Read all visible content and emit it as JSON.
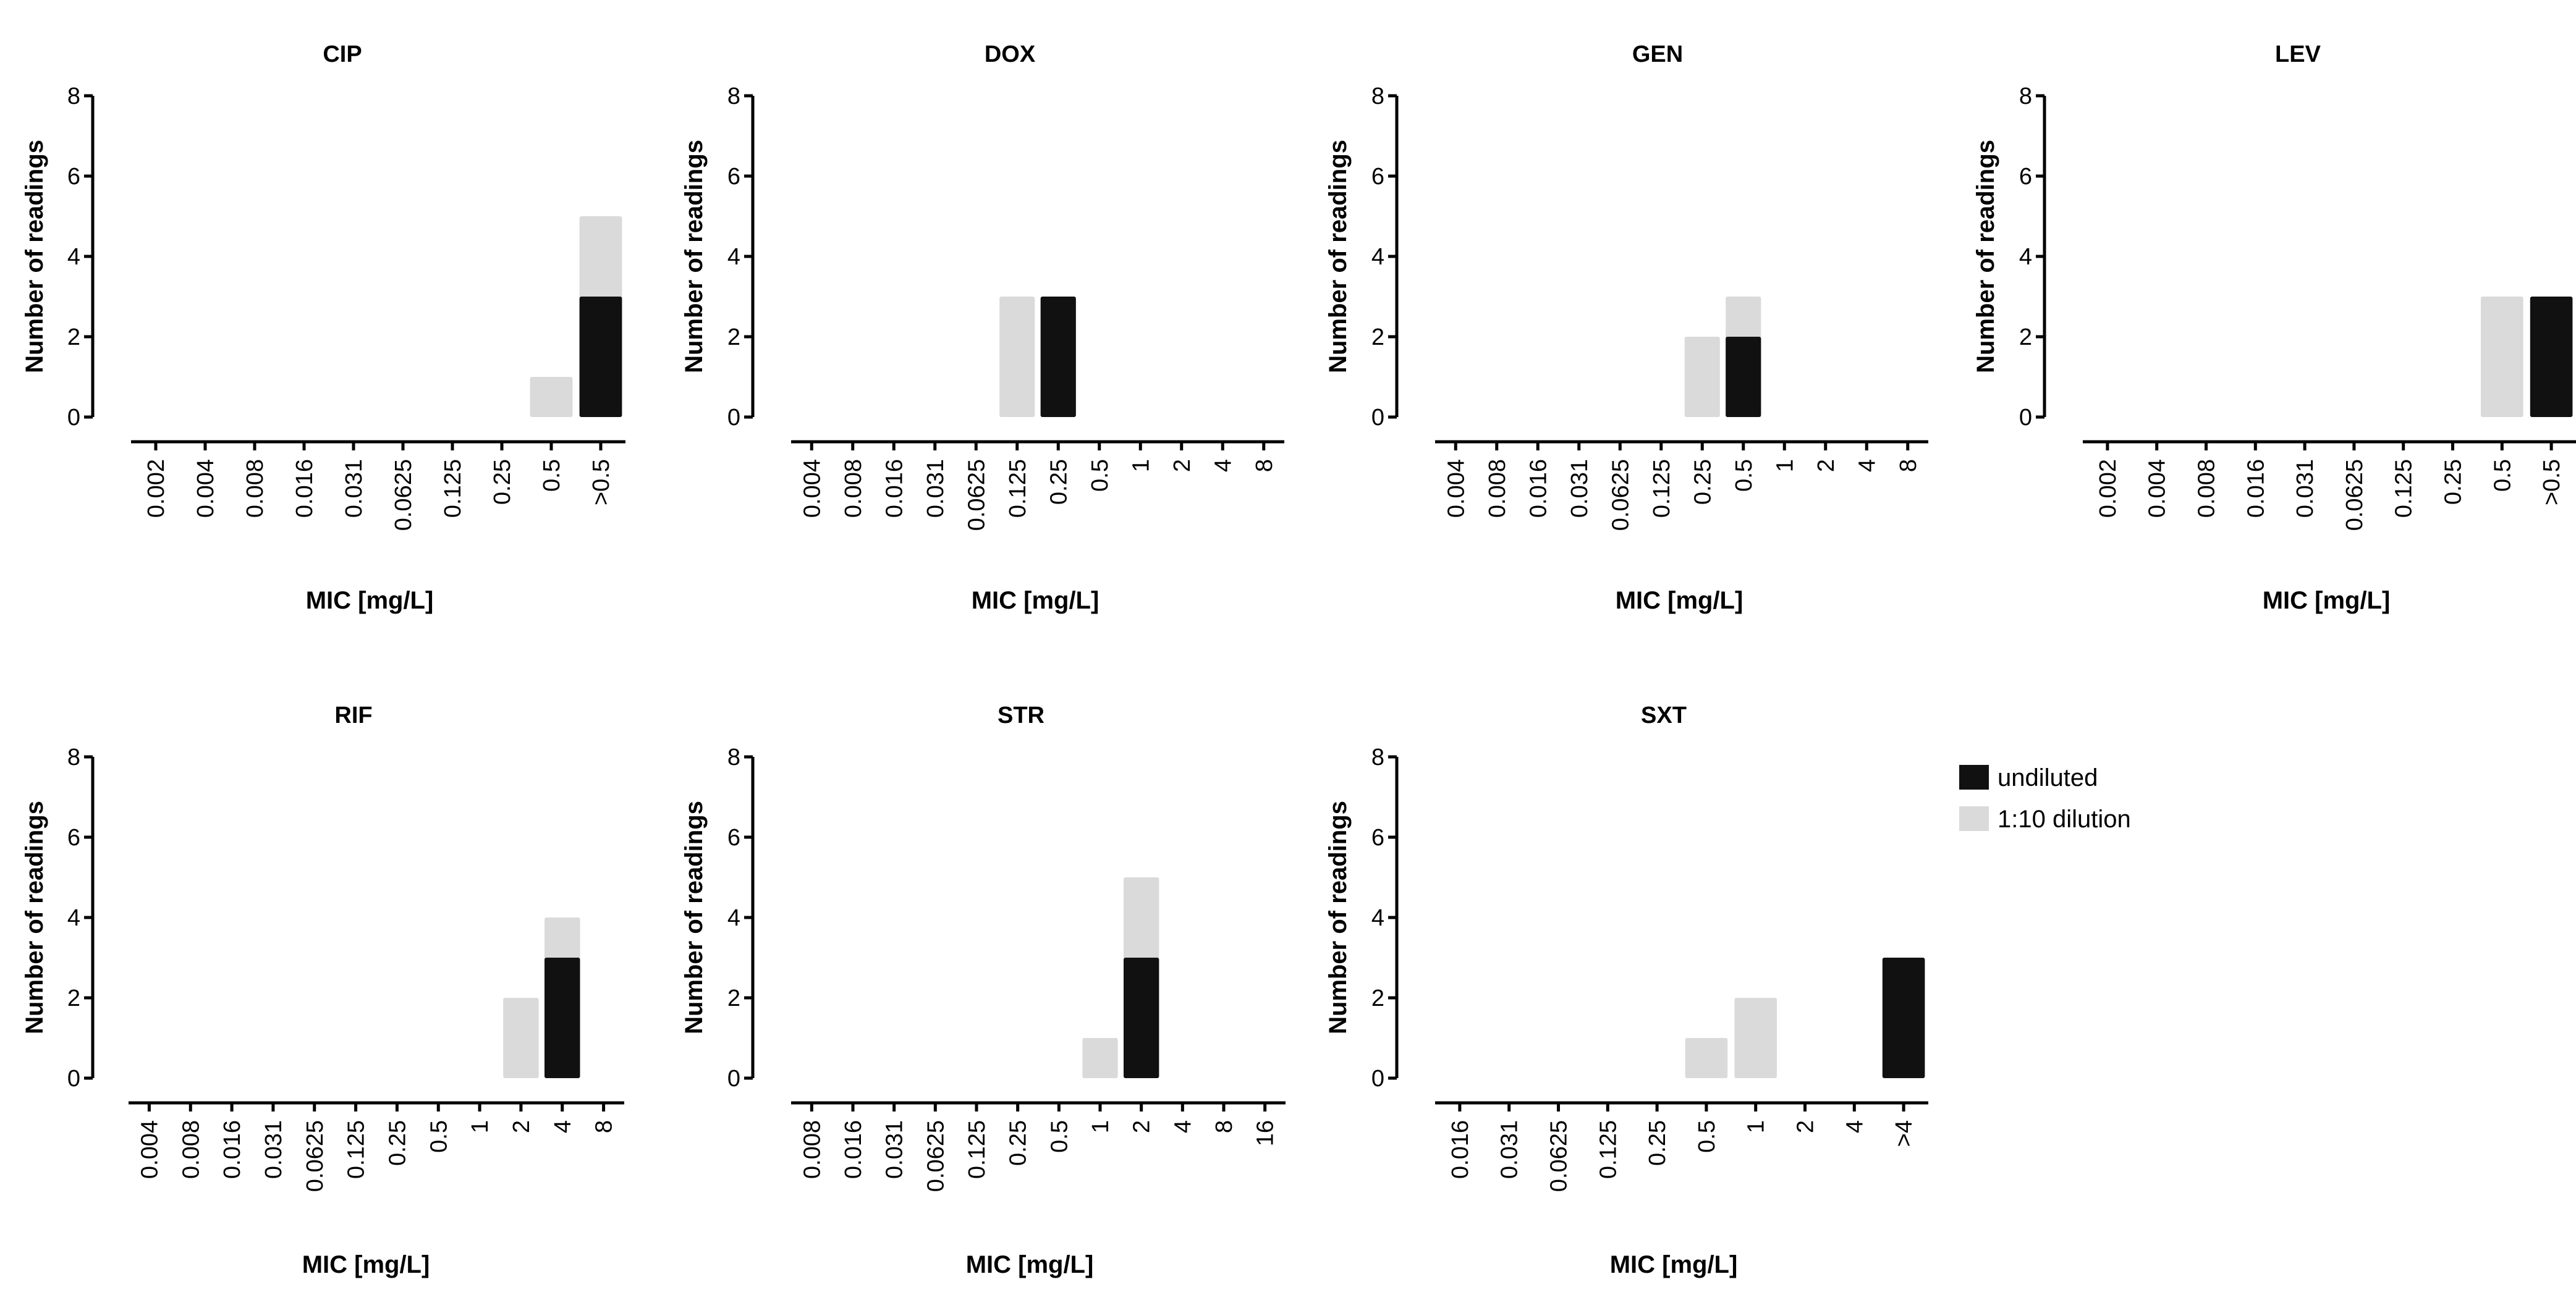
{
  "figure": {
    "colors": {
      "undiluted": "#111111",
      "dilution": "#dadada"
    }
  },
  "legend": {
    "items": [
      {
        "key": "undiluted",
        "label": "undiluted",
        "color": "#111111"
      },
      {
        "key": "dilution",
        "label": "1:10 dilution",
        "color": "#dadada"
      }
    ]
  },
  "chart_data": [
    {
      "type": "bar",
      "title": "CIP",
      "xlabel": "MIC [mg/L]",
      "ylabel": "Number of readings",
      "ylim": [
        0,
        8
      ],
      "yticks": [
        0,
        2,
        4,
        6,
        8
      ],
      "categories": [
        "0.002",
        "0.004",
        "0.008",
        "0.016",
        "0.031",
        "0.0625",
        "0.125",
        "0.25",
        "0.5",
        ">0.5"
      ],
      "series": [
        {
          "name": "1:10 dilution",
          "values": [
            0,
            0,
            0,
            0,
            0,
            0,
            0,
            0,
            1,
            5
          ]
        },
        {
          "name": "undiluted",
          "values": [
            0,
            0,
            0,
            0,
            0,
            0,
            0,
            0,
            0,
            3
          ]
        }
      ]
    },
    {
      "type": "bar",
      "title": "DOX",
      "xlabel": "MIC [mg/L]",
      "ylabel": "Number of readings",
      "ylim": [
        0,
        8
      ],
      "yticks": [
        0,
        2,
        4,
        6,
        8
      ],
      "categories": [
        "0.004",
        "0.008",
        "0.016",
        "0.031",
        "0.0625",
        "0.125",
        "0.25",
        "0.5",
        "1",
        "2",
        "4",
        "8"
      ],
      "series": [
        {
          "name": "1:10 dilution",
          "values": [
            0,
            0,
            0,
            0,
            0,
            3,
            0,
            0,
            0,
            0,
            0,
            0
          ]
        },
        {
          "name": "undiluted",
          "values": [
            0,
            0,
            0,
            0,
            0,
            0,
            3,
            0,
            0,
            0,
            0,
            0
          ]
        }
      ]
    },
    {
      "type": "bar",
      "title": "GEN",
      "xlabel": "MIC [mg/L]",
      "ylabel": "Number of readings",
      "ylim": [
        0,
        8
      ],
      "yticks": [
        0,
        2,
        4,
        6,
        8
      ],
      "categories": [
        "0.004",
        "0.008",
        "0.016",
        "0.031",
        "0.0625",
        "0.125",
        "0.25",
        "0.5",
        "1",
        "2",
        "4",
        "8"
      ],
      "series": [
        {
          "name": "1:10 dilution",
          "values": [
            0,
            0,
            0,
            0,
            0,
            0,
            2,
            3,
            0,
            0,
            0,
            0
          ]
        },
        {
          "name": "undiluted",
          "values": [
            0,
            0,
            0,
            0,
            0,
            0,
            0,
            2,
            0,
            0,
            0,
            0
          ]
        }
      ]
    },
    {
      "type": "bar",
      "title": "LEV",
      "xlabel": "MIC [mg/L]",
      "ylabel": "Number of readings",
      "ylim": [
        0,
        8
      ],
      "yticks": [
        0,
        2,
        4,
        6,
        8
      ],
      "categories": [
        "0.002",
        "0.004",
        "0.008",
        "0.016",
        "0.031",
        "0.0625",
        "0.125",
        "0.25",
        "0.5",
        ">0.5"
      ],
      "series": [
        {
          "name": "1:10 dilution",
          "values": [
            0,
            0,
            0,
            0,
            0,
            0,
            0,
            0,
            3,
            0
          ]
        },
        {
          "name": "undiluted",
          "values": [
            0,
            0,
            0,
            0,
            0,
            0,
            0,
            0,
            0,
            3
          ]
        }
      ]
    },
    {
      "type": "bar",
      "title": "RIF",
      "xlabel": "MIC [mg/L]",
      "ylabel": "Number of readings",
      "ylim": [
        0,
        8
      ],
      "yticks": [
        0,
        2,
        4,
        6,
        8
      ],
      "categories": [
        "0.004",
        "0.008",
        "0.016",
        "0.031",
        "0.0625",
        "0.125",
        "0.25",
        "0.5",
        "1",
        "2",
        "4",
        "8"
      ],
      "series": [
        {
          "name": "1:10 dilution",
          "values": [
            0,
            0,
            0,
            0,
            0,
            0,
            0,
            0,
            0,
            2,
            4,
            0
          ]
        },
        {
          "name": "undiluted",
          "values": [
            0,
            0,
            0,
            0,
            0,
            0,
            0,
            0,
            0,
            0,
            3,
            0
          ]
        }
      ]
    },
    {
      "type": "bar",
      "title": "STR",
      "xlabel": "MIC [mg/L]",
      "ylabel": "Number of readings",
      "ylim": [
        0,
        8
      ],
      "yticks": [
        0,
        2,
        4,
        6,
        8
      ],
      "categories": [
        "0.008",
        "0.016",
        "0.031",
        "0.0625",
        "0.125",
        "0.25",
        "0.5",
        "1",
        "2",
        "4",
        "8",
        "16"
      ],
      "series": [
        {
          "name": "1:10 dilution",
          "values": [
            0,
            0,
            0,
            0,
            0,
            0,
            0,
            1,
            5,
            0,
            0,
            0
          ]
        },
        {
          "name": "undiluted",
          "values": [
            0,
            0,
            0,
            0,
            0,
            0,
            0,
            0,
            3,
            0,
            0,
            0
          ]
        }
      ]
    },
    {
      "type": "bar",
      "title": "SXT",
      "xlabel": "MIC [mg/L]",
      "ylabel": "Number of readings",
      "ylim": [
        0,
        8
      ],
      "yticks": [
        0,
        2,
        4,
        6,
        8
      ],
      "categories": [
        "0.016",
        "0.031",
        "0.0625",
        "0.125",
        "0.25",
        "0.5",
        "1",
        "2",
        "4",
        ">4"
      ],
      "series": [
        {
          "name": "1:10 dilution",
          "values": [
            0,
            0,
            0,
            0,
            0,
            1,
            2,
            0,
            0,
            0
          ]
        },
        {
          "name": "undiluted",
          "values": [
            0,
            0,
            0,
            0,
            0,
            0,
            0,
            0,
            0,
            3
          ]
        }
      ]
    }
  ]
}
